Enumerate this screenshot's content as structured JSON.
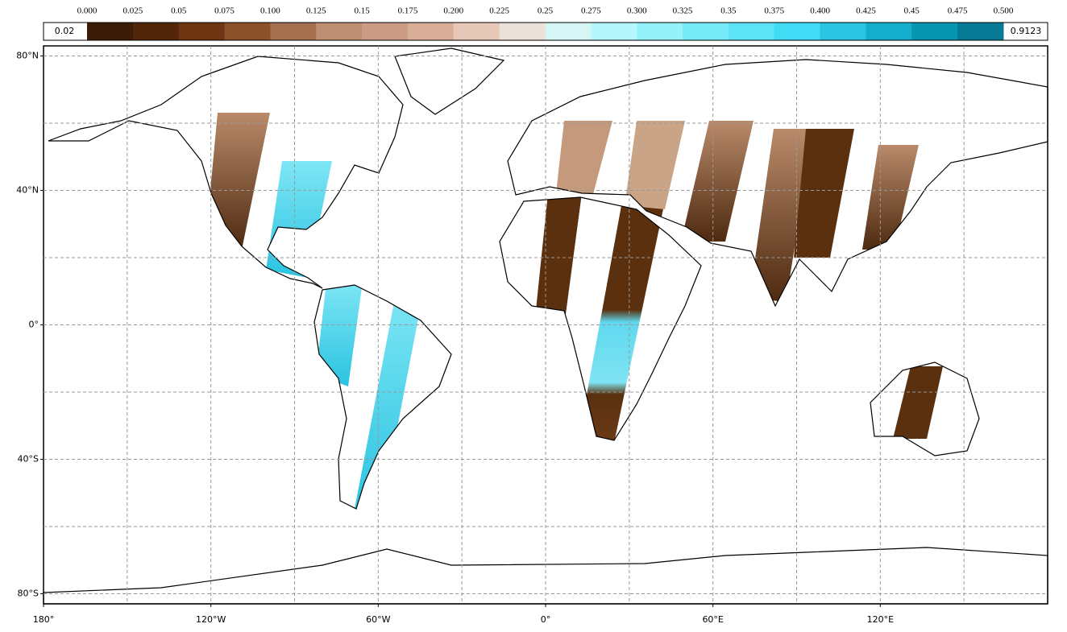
{
  "colorbar": {
    "ticks": [
      {
        "value": 0,
        "label": "0.000"
      },
      0.025,
      0.05,
      0.075,
      {
        "value": 0.1,
        "label": "0.100"
      },
      0.125,
      0.15,
      0.175,
      {
        "value": 0.2,
        "label": "0.200"
      },
      0.225,
      0.25,
      0.275,
      {
        "value": 0.3,
        "label": "0.300"
      },
      0.325,
      0.35,
      0.375,
      {
        "value": 0.4,
        "label": "0.400"
      },
      0.425,
      0.45,
      0.475,
      {
        "value": 0.5,
        "label": "0.500"
      }
    ],
    "colors": [
      "#3b1c07",
      "#512609",
      "#6d3512",
      "#8b5128",
      "#a4704f",
      "#bf8f73",
      "#cc9d84",
      "#d9ae98",
      "#e6c8b9",
      "#ece2da",
      "#d6f6f6",
      "#b5f7fb",
      "#95f2fb",
      "#78ebf8",
      "#5ce3f6",
      "#40dbf4",
      "#29c5e3",
      "#13aecb",
      "#0895b2",
      "#077a96"
    ],
    "min": 0.02,
    "max": 0.9123
  },
  "map": {
    "xlim": [
      -180,
      180
    ],
    "ylim": [
      -83,
      83
    ],
    "xticks": [
      {
        "value": -180,
        "label": "180°"
      },
      {
        "value": -120,
        "label": "120°W"
      },
      {
        "value": -60,
        "label": "60°W"
      },
      {
        "value": 0,
        "label": "0°"
      },
      {
        "value": 60,
        "label": "60°E"
      },
      {
        "value": 120,
        "label": "120°E"
      }
    ],
    "yticks": [
      {
        "value": 80,
        "label": "80°N"
      },
      {
        "value": 40,
        "label": "40°N"
      },
      {
        "value": 0,
        "label": "0°"
      },
      {
        "value": -40,
        "label": "40°S"
      },
      {
        "value": -80,
        "label": "80°S"
      }
    ],
    "xgrid": [
      -150,
      -90,
      -30,
      30,
      90,
      150
    ],
    "ygrid": [
      60,
      20,
      -20,
      -60
    ]
  }
}
